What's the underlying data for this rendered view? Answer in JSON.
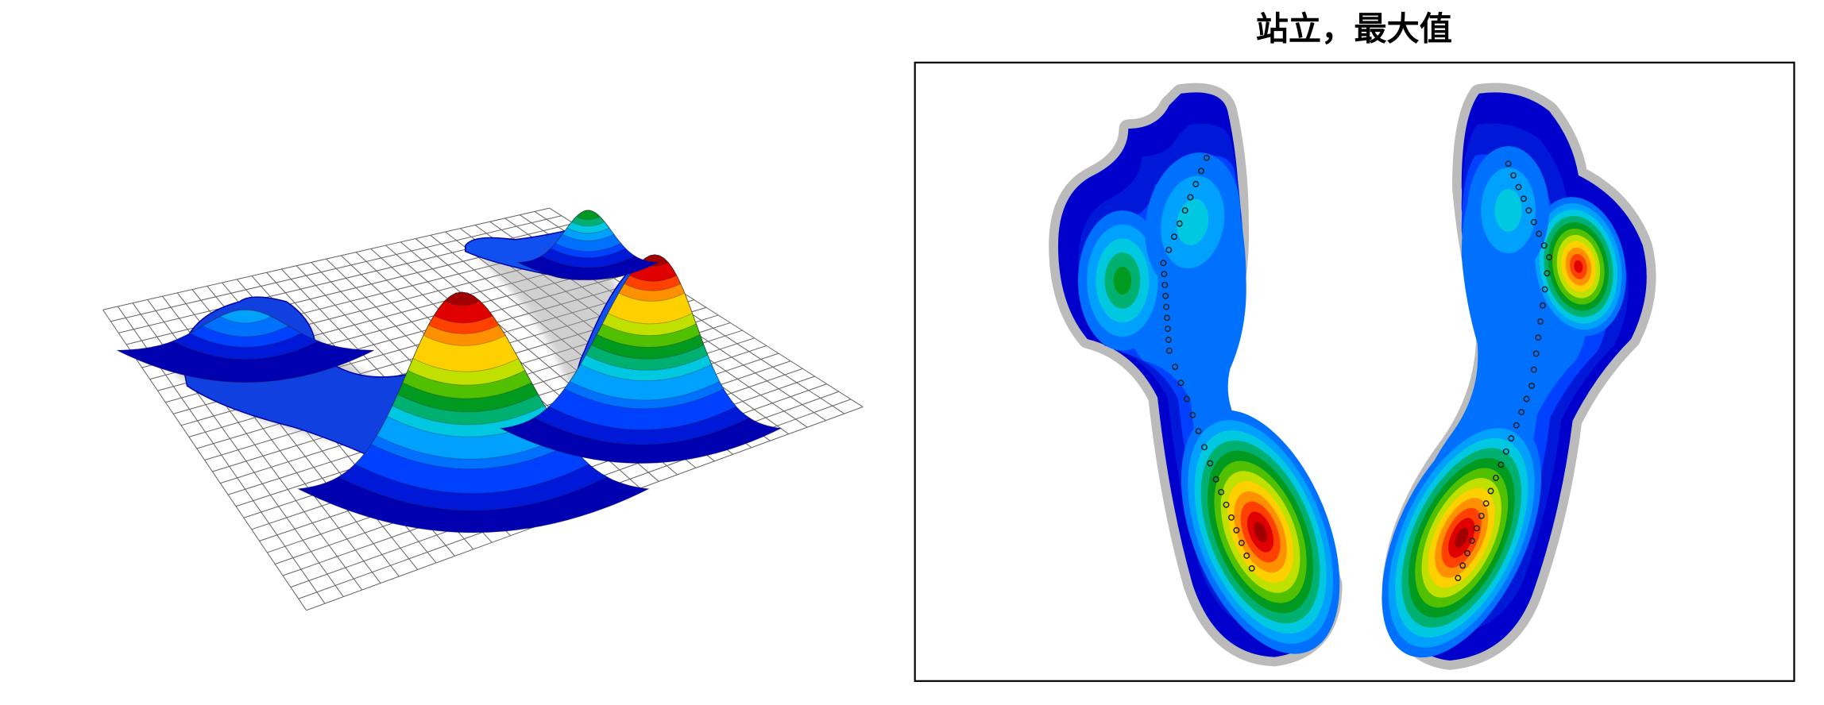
{
  "title": "站立，最大值"
}
